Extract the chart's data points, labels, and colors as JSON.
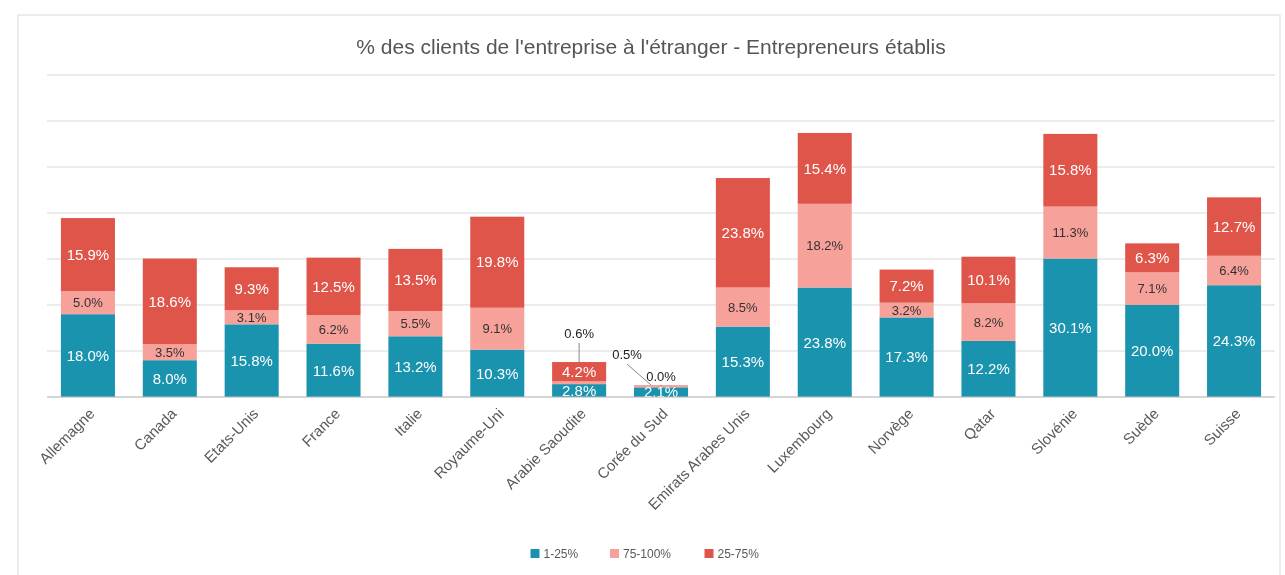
{
  "chart_data": {
    "type": "bar",
    "stacked": true,
    "title": "% des clients de l'entreprise à l'étranger - Entrepreneurs établis",
    "categories": [
      "Allemagne",
      "Canada",
      "Etats-Unis",
      "France",
      "Italie",
      "Royaume-Uni",
      "Arabie Saoudite",
      "Corée du Sud",
      "Emirats Arabes Unis",
      "Luxembourg",
      "Norvège",
      "Qatar",
      "Slovénie",
      "Suède",
      "Suisse"
    ],
    "series": [
      {
        "name": "1-25%",
        "color": "#1a93ae",
        "values": [
          18.0,
          8.0,
          15.8,
          11.6,
          13.2,
          10.3,
          2.8,
          2.1,
          15.3,
          23.8,
          17.3,
          12.2,
          30.1,
          20.0,
          24.3
        ],
        "value_labels": [
          "18.0%",
          "8.0%",
          "15.8%",
          "11.6%",
          "13.2%",
          "10.3%",
          "2.8%",
          "2.1%",
          "15.3%",
          "23.8%",
          "17.3%",
          "12.2%",
          "30.1%",
          "20.0%",
          "24.3%"
        ]
      },
      {
        "name": "75-100%",
        "color": "#f6a19a",
        "values": [
          5.0,
          3.5,
          3.1,
          6.2,
          5.5,
          9.1,
          0.6,
          0.5,
          8.5,
          18.2,
          3.2,
          8.2,
          11.3,
          7.1,
          6.4
        ],
        "value_labels": [
          "5.0%",
          "3.5%",
          "3.1%",
          "6.2%",
          "5.5%",
          "9.1%",
          "0.6%",
          "0.5%",
          "8.5%",
          "18.2%",
          "3.2%",
          "8.2%",
          "11.3%",
          "7.1%",
          "6.4%"
        ]
      },
      {
        "name": "25-75%",
        "color": "#e0554a",
        "values": [
          15.9,
          18.6,
          9.3,
          12.5,
          13.5,
          19.8,
          4.2,
          0.0,
          23.8,
          15.4,
          7.2,
          10.1,
          15.8,
          6.3,
          12.7
        ],
        "value_labels": [
          "15.9%",
          "18.6%",
          "9.3%",
          "12.5%",
          "13.5%",
          "19.8%",
          "4.2%",
          "0.0%",
          "23.8%",
          "15.4%",
          "7.2%",
          "10.1%",
          "15.8%",
          "6.3%",
          "12.7%"
        ]
      }
    ],
    "ylim": [
      0,
      70
    ],
    "yticks": [
      {
        "value": 0,
        "label": null
      },
      {
        "value": 10,
        "label": null
      },
      {
        "value": 20,
        "label": null
      },
      {
        "value": 30,
        "label": null
      },
      {
        "value": 40,
        "label": null
      },
      {
        "value": 50,
        "label": null
      },
      {
        "value": 60,
        "label": null
      },
      {
        "value": 70,
        "label": null
      }
    ],
    "tick_labels": "x",
    "grid": "y",
    "legend": "bottom"
  }
}
